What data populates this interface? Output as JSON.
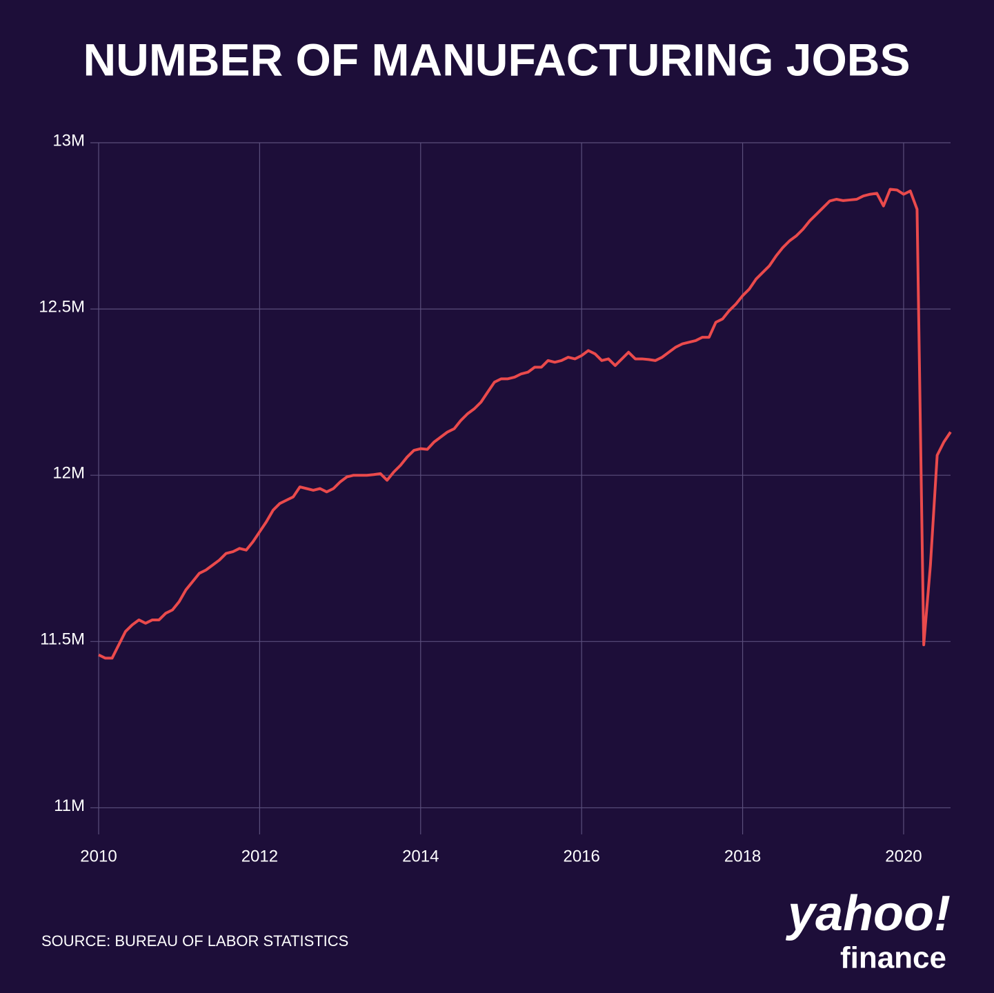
{
  "chart_data": {
    "type": "line",
    "title": "NUMBER OF MANUFACTURING JOBS",
    "source": "SOURCE: BUREAU OF LABOR STATISTICS",
    "logo": {
      "brand": "yahoo!",
      "product": "finance"
    },
    "x": [
      2010,
      2010.083,
      2010.167,
      2010.25,
      2010.333,
      2010.417,
      2010.5,
      2010.583,
      2010.667,
      2010.75,
      2010.833,
      2010.917,
      2011,
      2011.083,
      2011.167,
      2011.25,
      2011.333,
      2011.417,
      2011.5,
      2011.583,
      2011.667,
      2011.75,
      2011.833,
      2011.917,
      2012,
      2012.083,
      2012.167,
      2012.25,
      2012.333,
      2012.417,
      2012.5,
      2012.583,
      2012.667,
      2012.75,
      2012.833,
      2012.917,
      2013,
      2013.083,
      2013.167,
      2013.25,
      2013.333,
      2013.417,
      2013.5,
      2013.583,
      2013.667,
      2013.75,
      2013.833,
      2013.917,
      2014,
      2014.083,
      2014.167,
      2014.25,
      2014.333,
      2014.417,
      2014.5,
      2014.583,
      2014.667,
      2014.75,
      2014.833,
      2014.917,
      2015,
      2015.083,
      2015.167,
      2015.25,
      2015.333,
      2015.417,
      2015.5,
      2015.583,
      2015.667,
      2015.75,
      2015.833,
      2015.917,
      2016,
      2016.083,
      2016.167,
      2016.25,
      2016.333,
      2016.417,
      2016.5,
      2016.583,
      2016.667,
      2016.75,
      2016.833,
      2016.917,
      2017,
      2017.083,
      2017.167,
      2017.25,
      2017.333,
      2017.417,
      2017.5,
      2017.583,
      2017.667,
      2017.75,
      2017.833,
      2017.917,
      2018,
      2018.083,
      2018.167,
      2018.25,
      2018.333,
      2018.417,
      2018.5,
      2018.583,
      2018.667,
      2018.75,
      2018.833,
      2018.917,
      2019,
      2019.083,
      2019.167,
      2019.25,
      2019.333,
      2019.417,
      2019.5,
      2019.583,
      2019.667,
      2019.75,
      2019.833,
      2019.917,
      2020,
      2020.083,
      2020.167,
      2020.25,
      2020.333,
      2020.417,
      2020.5,
      2020.583
    ],
    "series": [
      {
        "name": "Manufacturing jobs",
        "color": "#ea4a4c",
        "values": [
          11.46,
          11.45,
          11.45,
          11.49,
          11.53,
          11.55,
          11.565,
          11.555,
          11.565,
          11.565,
          11.585,
          11.595,
          11.62,
          11.655,
          11.68,
          11.705,
          11.715,
          11.73,
          11.745,
          11.765,
          11.77,
          11.78,
          11.775,
          11.8,
          11.83,
          11.86,
          11.895,
          11.915,
          11.925,
          11.935,
          11.965,
          11.96,
          11.955,
          11.96,
          11.95,
          11.96,
          11.98,
          11.995,
          12.0,
          12.0,
          12.0,
          12.002,
          12.005,
          11.985,
          12.01,
          12.03,
          12.055,
          12.075,
          12.08,
          12.078,
          12.1,
          12.115,
          12.13,
          12.14,
          12.165,
          12.185,
          12.2,
          12.22,
          12.25,
          12.28,
          12.29,
          12.29,
          12.295,
          12.305,
          12.31,
          12.325,
          12.325,
          12.345,
          12.34,
          12.345,
          12.355,
          12.35,
          12.36,
          12.375,
          12.365,
          12.345,
          12.35,
          12.33,
          12.35,
          12.37,
          12.35,
          12.35,
          12.348,
          12.345,
          12.355,
          12.37,
          12.385,
          12.395,
          12.4,
          12.405,
          12.415,
          12.415,
          12.46,
          12.47,
          12.495,
          12.515,
          12.54,
          12.56,
          12.59,
          12.61,
          12.63,
          12.66,
          12.685,
          12.705,
          12.72,
          12.74,
          12.765,
          12.785,
          12.805,
          12.825,
          12.83,
          12.826,
          12.828,
          12.83,
          12.84,
          12.845,
          12.848,
          12.81,
          12.86,
          12.858,
          12.845,
          12.855,
          12.8,
          11.49,
          11.73,
          12.06,
          12.1,
          12.13
        ]
      }
    ],
    "xlim": [
      2010,
      2020.583
    ],
    "xticks": [
      2010,
      2012,
      2014,
      2016,
      2018,
      2020
    ],
    "ylim": [
      10.92,
      13
    ],
    "yticks": [
      {
        "value": 11,
        "label": "11M"
      },
      {
        "value": 11.5,
        "label": "11.5M"
      },
      {
        "value": 12,
        "label": "12M"
      },
      {
        "value": 12.5,
        "label": "12.5M"
      },
      {
        "value": 13,
        "label": "13M"
      }
    ],
    "grid": true
  }
}
